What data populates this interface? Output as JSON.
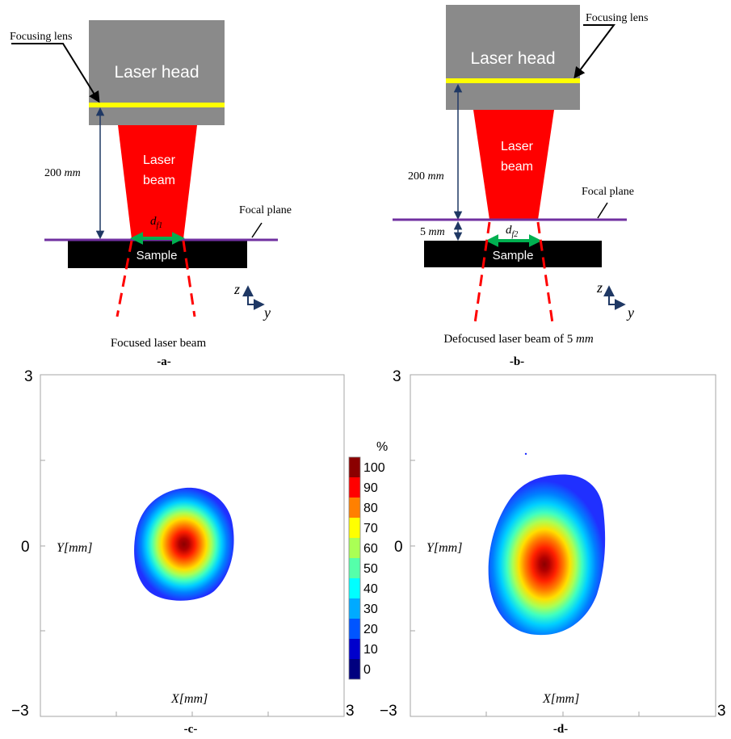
{
  "panel_a": {
    "laser_head": "Laser head",
    "focusing_lens": "Focusing lens",
    "beam_line1": "Laser",
    "beam_line2": "beam",
    "distance_num": "200",
    "distance_unit": "mm",
    "focal_plane": "Focal plane",
    "spot_d": "d",
    "spot_sub": "f1",
    "sample": "Sample",
    "axis_z": "z",
    "axis_y": "y",
    "caption": "Focused laser beam",
    "panel_label": "-a-",
    "colors": {
      "head": "#8a8a8a",
      "lens": "#ffff00",
      "beam": "#ff0000",
      "plane": "#7030a0",
      "arrow": "#00b050",
      "sample": "#000000"
    }
  },
  "panel_b": {
    "laser_head": "Laser head",
    "focusing_lens": "Focusing lens",
    "beam_line1": "Laser",
    "beam_line2": "beam",
    "distance_num": "200",
    "distance_unit": "mm",
    "offset_num": "5",
    "offset_unit": "mm",
    "focal_plane": "Focal plane",
    "spot_d": "d",
    "spot_sub": "f2",
    "sample": "Sample",
    "axis_z": "z",
    "axis_y": "y",
    "caption_text": "Defocused laser beam of ",
    "caption_num": "5",
    "caption_unit": "mm",
    "panel_label": "-b-"
  },
  "panel_c": {
    "y_top": "3",
    "y_mid": "0",
    "y_bottom": "−3",
    "x_right": "3",
    "ylabel": "Y[mm]",
    "xlabel": "X[mm]",
    "panel_label": "-c-"
  },
  "panel_d": {
    "y_top": "3",
    "y_mid": "0",
    "y_bottom": "−3",
    "x_right": "3",
    "ylabel": "Y[mm]",
    "xlabel": "X[mm]",
    "panel_label": "-d-"
  },
  "colorbar": {
    "unit": "%",
    "ticks": [
      "100",
      "90",
      "80",
      "70",
      "60",
      "50",
      "40",
      "30",
      "20",
      "10",
      "0"
    ],
    "colors": [
      "#8b0000",
      "#ff0000",
      "#ff8000",
      "#ffff00",
      "#aaff55",
      "#55ffaa",
      "#00ffff",
      "#00aaff",
      "#0055ff",
      "#0000cc",
      "#00007f"
    ]
  }
}
